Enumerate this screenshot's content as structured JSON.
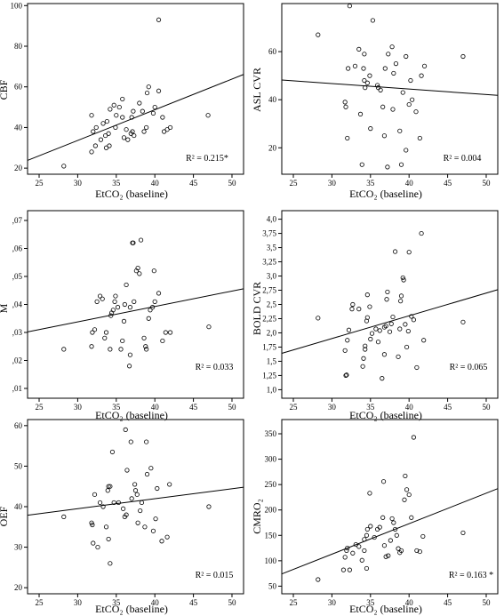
{
  "chart_data": [
    {
      "type": "scatter",
      "ylabel": "CBF",
      "xlabel": "EtCO₂ (baseline)",
      "r2": "R² = 0.215*",
      "xlim": [
        23.5,
        51.5
      ],
      "ylim": [
        17,
        101
      ],
      "xticks": [
        "25",
        "30",
        "35",
        "40",
        "45",
        "50"
      ],
      "yticks": [
        "20",
        "40",
        "60",
        "80",
        "100"
      ],
      "yticks_values": [
        20,
        40,
        60,
        80,
        100
      ],
      "fit": {
        "x": [
          23.5,
          51.5
        ],
        "y": [
          23.8,
          66.1
        ]
      },
      "points": [
        [
          28.2,
          21
        ],
        [
          31.8,
          46
        ],
        [
          32.0,
          38
        ],
        [
          31.8,
          28
        ],
        [
          32.3,
          31
        ],
        [
          33.0,
          34
        ],
        [
          32.4,
          40
        ],
        [
          33.3,
          42
        ],
        [
          33.8,
          43
        ],
        [
          34.0,
          37
        ],
        [
          33.6,
          36
        ],
        [
          33.7,
          30
        ],
        [
          34.1,
          31
        ],
        [
          34.2,
          49
        ],
        [
          34.7,
          51
        ],
        [
          34.9,
          40
        ],
        [
          35.0,
          46
        ],
        [
          35.4,
          50
        ],
        [
          35.8,
          54
        ],
        [
          35.8,
          45
        ],
        [
          36.0,
          35
        ],
        [
          36.3,
          39
        ],
        [
          36.5,
          34
        ],
        [
          36.9,
          37
        ],
        [
          37.1,
          38
        ],
        [
          37.3,
          36
        ],
        [
          37.0,
          45
        ],
        [
          37.2,
          48
        ],
        [
          38.0,
          52
        ],
        [
          38.4,
          48
        ],
        [
          38.6,
          38
        ],
        [
          39.0,
          57
        ],
        [
          39.2,
          60
        ],
        [
          38.9,
          40
        ],
        [
          39.8,
          47
        ],
        [
          40.0,
          50
        ],
        [
          40.5,
          58
        ],
        [
          40.5,
          93
        ],
        [
          41.0,
          45
        ],
        [
          41.2,
          38
        ],
        [
          41.6,
          39
        ],
        [
          42.0,
          40
        ],
        [
          46.9,
          46
        ]
      ]
    },
    {
      "type": "scatter",
      "ylabel": "ASL CVR",
      "xlabel": "EtCO₂ (baseline)",
      "r2": "R² = 0.004",
      "xlim": [
        23.5,
        51.5
      ],
      "ylim": [
        9,
        80
      ],
      "xticks": [
        "25",
        "30",
        "35",
        "40",
        "45",
        "50"
      ],
      "yticks": [
        "20",
        "40",
        "60"
      ],
      "yticks_values": [
        20,
        40,
        60
      ],
      "fit": {
        "x": [
          23.5,
          51.5
        ],
        "y": [
          48.2,
          41.8
        ]
      },
      "points": [
        [
          28.2,
          67
        ],
        [
          31.7,
          39
        ],
        [
          31.8,
          37
        ],
        [
          32.0,
          24
        ],
        [
          32.1,
          53
        ],
        [
          32.3,
          79
        ],
        [
          33.0,
          54
        ],
        [
          33.5,
          61
        ],
        [
          33.7,
          34
        ],
        [
          33.9,
          13
        ],
        [
          34.2,
          59
        ],
        [
          34.1,
          53
        ],
        [
          34.2,
          48
        ],
        [
          34.3,
          45
        ],
        [
          34.6,
          47
        ],
        [
          34.9,
          50
        ],
        [
          35.0,
          28
        ],
        [
          35.3,
          73
        ],
        [
          35.9,
          46
        ],
        [
          36.0,
          45
        ],
        [
          36.3,
          44
        ],
        [
          36.6,
          37
        ],
        [
          36.8,
          25
        ],
        [
          36.9,
          53
        ],
        [
          37.2,
          12
        ],
        [
          37.3,
          59
        ],
        [
          37.8,
          62
        ],
        [
          37.9,
          36
        ],
        [
          38.0,
          51
        ],
        [
          38.3,
          55
        ],
        [
          38.8,
          27
        ],
        [
          39.0,
          13
        ],
        [
          39.2,
          43
        ],
        [
          39.6,
          58
        ],
        [
          39.6,
          19
        ],
        [
          40.0,
          38
        ],
        [
          40.2,
          48
        ],
        [
          40.4,
          40
        ],
        [
          40.9,
          35
        ],
        [
          41.4,
          24
        ],
        [
          41.6,
          50
        ],
        [
          42.0,
          54
        ],
        [
          47.0,
          58
        ]
      ]
    },
    {
      "type": "scatter",
      "ylabel": "M",
      "xlabel": "EtCO₂ (baseline)",
      "r2": "R² = 0.033",
      "xlim": [
        23.5,
        51.5
      ],
      "ylim": [
        0.0065,
        0.0735
      ],
      "xticks": [
        "25",
        "30",
        "35",
        "40",
        "45",
        "50"
      ],
      "yticks": [
        ",01",
        ",02",
        ",03",
        ",04",
        ",05",
        ",06",
        ",07"
      ],
      "yticks_values": [
        0.01,
        0.02,
        0.03,
        0.04,
        0.05,
        0.06,
        0.07
      ],
      "fit": {
        "x": [
          23.5,
          51.5
        ],
        "y": [
          0.0302,
          0.0456
        ]
      },
      "points": [
        [
          28.2,
          0.024
        ],
        [
          31.8,
          0.025
        ],
        [
          31.9,
          0.03
        ],
        [
          32.2,
          0.031
        ],
        [
          32.5,
          0.041
        ],
        [
          32.9,
          0.043
        ],
        [
          33.2,
          0.042
        ],
        [
          33.5,
          0.028
        ],
        [
          33.7,
          0.03
        ],
        [
          34.2,
          0.024
        ],
        [
          34.3,
          0.036
        ],
        [
          34.4,
          0.037
        ],
        [
          34.6,
          0.038
        ],
        [
          34.8,
          0.041
        ],
        [
          34.9,
          0.043
        ],
        [
          35.2,
          0.039
        ],
        [
          35.6,
          0.024
        ],
        [
          35.8,
          0.027
        ],
        [
          36.0,
          0.034
        ],
        [
          36.1,
          0.04
        ],
        [
          36.3,
          0.047
        ],
        [
          36.7,
          0.018
        ],
        [
          36.8,
          0.022
        ],
        [
          36.8,
          0.039
        ],
        [
          37.1,
          0.062
        ],
        [
          37.2,
          0.062
        ],
        [
          37.3,
          0.041
        ],
        [
          37.6,
          0.052
        ],
        [
          37.8,
          0.053
        ],
        [
          38.0,
          0.051
        ],
        [
          38.2,
          0.063
        ],
        [
          38.6,
          0.028
        ],
        [
          38.8,
          0.025
        ],
        [
          38.9,
          0.024
        ],
        [
          39.2,
          0.035
        ],
        [
          39.4,
          0.038
        ],
        [
          39.7,
          0.039
        ],
        [
          39.9,
          0.052
        ],
        [
          40.0,
          0.041
        ],
        [
          40.5,
          0.044
        ],
        [
          41.0,
          0.027
        ],
        [
          41.4,
          0.03
        ],
        [
          42.0,
          0.03
        ],
        [
          47.0,
          0.032
        ]
      ]
    },
    {
      "type": "scatter",
      "ylabel": "BOLD CVR",
      "xlabel": "EtCO₂ (baseline)",
      "r2": "R² = 0.065",
      "xlim": [
        23.5,
        51.5
      ],
      "ylim": [
        0.85,
        4.15
      ],
      "xticks": [
        "25",
        "30",
        "35",
        "40",
        "45",
        "50"
      ],
      "yticks": [
        "1,0",
        "1,25",
        "1,5",
        "1,75",
        "2,0",
        "2,25",
        "2,5",
        "2,75",
        "3,0",
        "3,25",
        "3,5",
        "3,75",
        "4,0"
      ],
      "yticks_values": [
        1.0,
        1.25,
        1.5,
        1.75,
        2.0,
        2.25,
        2.5,
        2.75,
        3.0,
        3.25,
        3.5,
        3.75,
        4.0
      ],
      "fit": {
        "x": [
          23.5,
          51.5
        ],
        "y": [
          1.64,
          2.76
        ]
      },
      "points": [
        [
          28.2,
          2.26
        ],
        [
          31.8,
          1.25
        ],
        [
          31.9,
          1.26
        ],
        [
          31.7,
          1.69
        ],
        [
          32.0,
          1.87
        ],
        [
          32.2,
          2.05
        ],
        [
          32.6,
          2.42
        ],
        [
          32.7,
          2.5
        ],
        [
          33.5,
          2.42
        ],
        [
          34.0,
          1.41
        ],
        [
          34.1,
          1.55
        ],
        [
          34.3,
          1.71
        ],
        [
          34.3,
          1.77
        ],
        [
          34.5,
          2.21
        ],
        [
          34.6,
          2.27
        ],
        [
          34.6,
          2.67
        ],
        [
          34.9,
          2.46
        ],
        [
          35.0,
          1.89
        ],
        [
          35.2,
          1.99
        ],
        [
          35.7,
          2.07
        ],
        [
          36.0,
          1.84
        ],
        [
          36.2,
          2.04
        ],
        [
          36.5,
          1.2
        ],
        [
          36.8,
          1.62
        ],
        [
          36.8,
          2.1
        ],
        [
          37.0,
          2.12
        ],
        [
          37.1,
          2.59
        ],
        [
          37.2,
          2.72
        ],
        [
          37.5,
          2.02
        ],
        [
          37.7,
          2.16
        ],
        [
          37.9,
          2.28
        ],
        [
          38.2,
          3.43
        ],
        [
          38.6,
          1.58
        ],
        [
          38.8,
          2.07
        ],
        [
          38.9,
          2.56
        ],
        [
          39.0,
          2.65
        ],
        [
          39.2,
          2.97
        ],
        [
          39.3,
          2.93
        ],
        [
          39.5,
          2.15
        ],
        [
          39.7,
          1.75
        ],
        [
          39.9,
          2.03
        ],
        [
          40.0,
          3.42
        ],
        [
          40.3,
          2.29
        ],
        [
          40.6,
          2.23
        ],
        [
          41.0,
          1.39
        ],
        [
          41.9,
          1.87
        ],
        [
          41.6,
          3.75
        ],
        [
          47.0,
          2.19
        ]
      ]
    },
    {
      "type": "scatter",
      "ylabel": "OEF",
      "xlabel": "EtCO₂ (baseline)",
      "r2": "R² = 0.015",
      "xlim": [
        23.5,
        51.5
      ],
      "ylim": [
        18.5,
        61.5
      ],
      "xticks": [
        "25",
        "30",
        "35",
        "40",
        "45",
        "50"
      ],
      "yticks": [
        "20",
        "30",
        "40",
        "50",
        "60"
      ],
      "yticks_values": [
        20,
        30,
        40,
        50,
        60
      ],
      "fit": {
        "x": [
          23.5,
          51.5
        ],
        "y": [
          37.9,
          44.8
        ]
      },
      "points": [
        [
          28.2,
          37.5
        ],
        [
          31.8,
          36
        ],
        [
          31.9,
          35.5
        ],
        [
          32.0,
          31
        ],
        [
          32.2,
          43
        ],
        [
          32.6,
          30
        ],
        [
          32.9,
          41
        ],
        [
          33.3,
          40
        ],
        [
          33.7,
          35
        ],
        [
          33.9,
          44
        ],
        [
          34.0,
          45
        ],
        [
          34.2,
          45
        ],
        [
          34.0,
          32
        ],
        [
          34.2,
          26
        ],
        [
          34.5,
          53.5
        ],
        [
          34.7,
          41
        ],
        [
          35.3,
          41
        ],
        [
          35.9,
          39.5
        ],
        [
          36.1,
          37.5
        ],
        [
          36.3,
          38
        ],
        [
          36.2,
          59
        ],
        [
          36.4,
          49
        ],
        [
          36.9,
          56
        ],
        [
          37.0,
          42
        ],
        [
          37.4,
          45.5
        ],
        [
          37.5,
          44
        ],
        [
          37.7,
          43
        ],
        [
          37.8,
          36
        ],
        [
          38.1,
          39
        ],
        [
          38.3,
          41
        ],
        [
          38.7,
          35
        ],
        [
          38.9,
          56
        ],
        [
          39.0,
          48
        ],
        [
          39.5,
          49.5
        ],
        [
          39.8,
          34
        ],
        [
          40.1,
          37
        ],
        [
          40.3,
          44.5
        ],
        [
          40.9,
          31.5
        ],
        [
          41.6,
          32.5
        ],
        [
          41.9,
          45.5
        ],
        [
          47.0,
          40
        ]
      ]
    },
    {
      "type": "scatter",
      "ylabel": "CMRO₂",
      "xlabel": "EtCO₂ (baseline)",
      "r2": "R² = 0.163 *",
      "xlim": [
        23.5,
        51.5
      ],
      "ylim": [
        35,
        378
      ],
      "xticks": [
        "25",
        "30",
        "35",
        "40",
        "45",
        "50"
      ],
      "yticks": [
        "50",
        "100",
        "150",
        "200",
        "250",
        "300",
        "350"
      ],
      "yticks_values": [
        50,
        100,
        150,
        200,
        250,
        300,
        350
      ],
      "fit": {
        "x": [
          23.5,
          51.5
        ],
        "y": [
          74,
          242
        ]
      },
      "points": [
        [
          28.2,
          63
        ],
        [
          31.5,
          82
        ],
        [
          31.7,
          107
        ],
        [
          31.9,
          120
        ],
        [
          32.0,
          125
        ],
        [
          32.3,
          82
        ],
        [
          32.7,
          115
        ],
        [
          33.1,
          132
        ],
        [
          33.5,
          128
        ],
        [
          33.9,
          101
        ],
        [
          34.2,
          120
        ],
        [
          34.2,
          142
        ],
        [
          34.5,
          85
        ],
        [
          34.5,
          150
        ],
        [
          34.6,
          162
        ],
        [
          34.9,
          233
        ],
        [
          35.0,
          168
        ],
        [
          35.5,
          146
        ],
        [
          35.9,
          162
        ],
        [
          36.2,
          166
        ],
        [
          36.6,
          185
        ],
        [
          36.7,
          256
        ],
        [
          36.8,
          130
        ],
        [
          37.0,
          108
        ],
        [
          37.3,
          110
        ],
        [
          37.6,
          140
        ],
        [
          37.8,
          183
        ],
        [
          38.0,
          175
        ],
        [
          38.2,
          162
        ],
        [
          38.4,
          150
        ],
        [
          38.6,
          124
        ],
        [
          38.8,
          116
        ],
        [
          39.0,
          120
        ],
        [
          39.4,
          220
        ],
        [
          39.5,
          267
        ],
        [
          39.7,
          240
        ],
        [
          40.0,
          230
        ],
        [
          40.3,
          185
        ],
        [
          40.6,
          343
        ],
        [
          41.0,
          120
        ],
        [
          41.4,
          118
        ],
        [
          41.8,
          148
        ],
        [
          47.0,
          155
        ]
      ]
    }
  ]
}
